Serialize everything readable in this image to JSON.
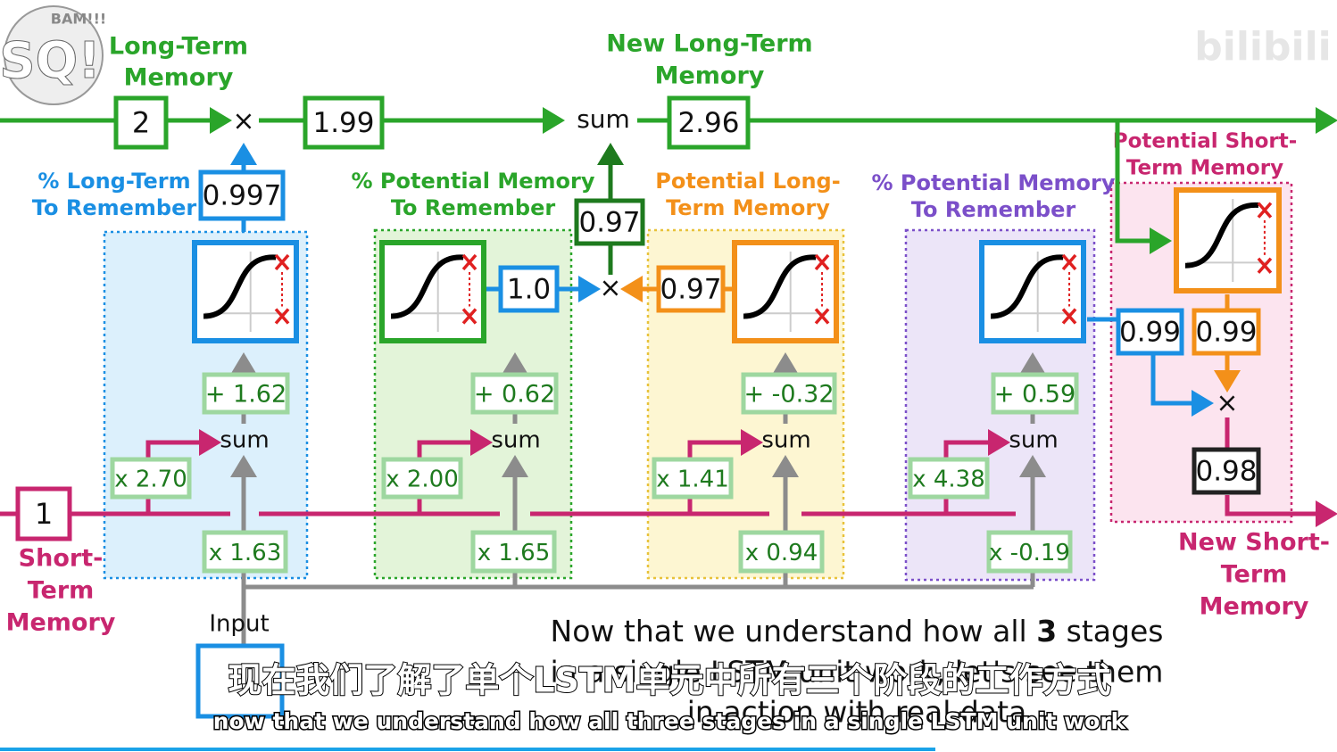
{
  "logo": {
    "letters": "SQ!",
    "bam": "BAM!!!"
  },
  "watermark": "bilibili",
  "long_term": {
    "label": [
      "Long-Term",
      "Memory"
    ],
    "new_label": [
      "New Long-Term",
      "Memory"
    ],
    "input": "2",
    "forget_op": "×",
    "kept": "1.99",
    "sum": "sum",
    "output": "2.96"
  },
  "short_term": {
    "input": "1",
    "label": [
      "Short-",
      "Term",
      "Memory"
    ],
    "new_label": [
      "New Short-",
      "Term",
      "Memory"
    ]
  },
  "input_label": "Input",
  "stages": [
    {
      "title": [
        "% Long-Term",
        "To Remember"
      ],
      "weight_short": "x 2.70",
      "weight_input": "x 1.63",
      "bias": "+ 1.62",
      "sum": "sum",
      "output": "0.997"
    },
    {
      "title": [
        "% Potential Memory",
        "To Remember"
      ],
      "weight_short": "x 2.00",
      "weight_input": "x 1.65",
      "bias": "+ 0.62",
      "sum": "sum",
      "output": "1.0"
    },
    {
      "title": [
        "Potential Long-",
        "Term Memory"
      ],
      "weight_short": "x 1.41",
      "weight_input": "x 0.94",
      "bias": "+ -0.32",
      "sum": "sum",
      "output": "0.97"
    },
    {
      "title": [
        "% Potential Memory",
        "To Remember"
      ],
      "weight_short": "x 4.38",
      "weight_input": "x -0.19",
      "bias": "+ 0.59",
      "sum": "sum",
      "output": "0.99"
    }
  ],
  "potential_memory": {
    "product": "0.97",
    "op": "×"
  },
  "output_gate": {
    "title": [
      "Potential Short-",
      "Term Memory"
    ],
    "potential": "0.99",
    "op": "×",
    "output": "0.98"
  },
  "caption": {
    "line1": [
      "Now that we understand how all ",
      "3",
      " stages"
    ],
    "line2": "in a single LSTM unit work, let's see them",
    "line3": "in action with real data"
  },
  "subtitles": {
    "zh": "现在我们了解了单个LSTM单元中所有三个阶段的工作方式",
    "en": "now that we understand how all three stages in a single LSTM unit work"
  }
}
